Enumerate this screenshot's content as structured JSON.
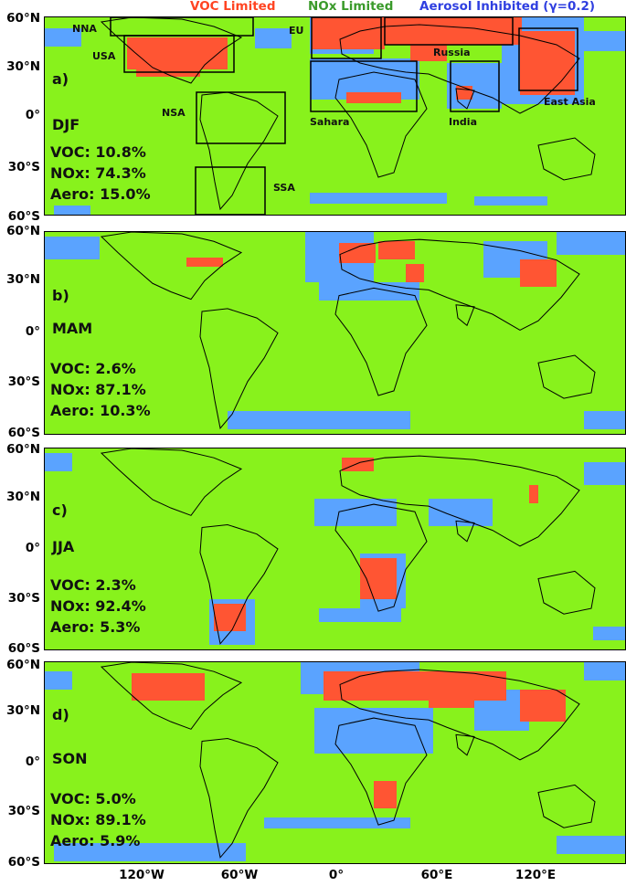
{
  "legend": {
    "voc": "VOC Limited",
    "nox": "NOx Limited",
    "aerosol": "Aerosol Inhibited (γ=0.2)"
  },
  "colors": {
    "voc": "#ff5533",
    "nox": "#88f21c",
    "aerosol": "#5aa3ff",
    "coastline": "#000000"
  },
  "axes": {
    "lat_ticks": [
      "60°N",
      "30°N",
      "0°",
      "30°S",
      "60°S"
    ],
    "lon_ticks": [
      "120°W",
      "60°W",
      "0°",
      "60°E",
      "120°E"
    ]
  },
  "regions": [
    "NNA",
    "USA",
    "NSA",
    "SSA",
    "EU",
    "Russia",
    "Sahara",
    "India",
    "East Asia"
  ],
  "panels": [
    {
      "letter": "a)",
      "season": "DJF",
      "voc": "VOC: 10.8%",
      "nox": "NOx: 74.3%",
      "aero": "Aero: 15.0%"
    },
    {
      "letter": "b)",
      "season": "MAM",
      "voc": "VOC: 2.6%",
      "nox": "NOx: 87.1%",
      "aero": "Aero: 10.3%"
    },
    {
      "letter": "c)",
      "season": "JJA",
      "voc": "VOC: 2.3%",
      "nox": "NOx: 92.4%",
      "aero": "Aero: 5.3%"
    },
    {
      "letter": "d)",
      "season": "SON",
      "voc": "VOC: 5.0%",
      "nox": "NOx: 89.1%",
      "aero": "Aero: 5.9%"
    }
  ]
}
